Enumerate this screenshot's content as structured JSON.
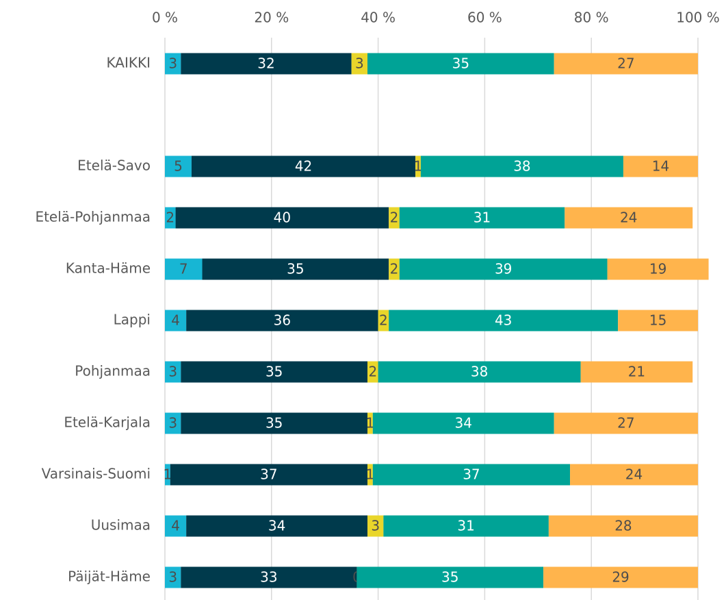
{
  "chart_data": {
    "type": "stacked_bar_horizontal",
    "categories": [
      "KAIKKI",
      null,
      "Etelä-Savo",
      "Etelä-Pohjanmaa",
      "Kanta-Häme",
      "Lappi",
      "Pohjanmaa",
      "Etelä-Karjala",
      "Varsinais-Suomi",
      "Uusimaa",
      "Päijät-Häme"
    ],
    "series": [
      {
        "color": "#17b6d4",
        "label_color": "#4d4d4d",
        "values": [
          3,
          null,
          5,
          2,
          7,
          4,
          3,
          3,
          1,
          4,
          3
        ]
      },
      {
        "color": "#003a4c",
        "label_color": "#ffffff",
        "values": [
          32,
          null,
          42,
          40,
          35,
          36,
          35,
          35,
          37,
          34,
          33
        ]
      },
      {
        "color": "#e9d62b",
        "label_color": "#4d4d4d",
        "values": [
          3,
          null,
          1,
          2,
          2,
          2,
          2,
          1,
          1,
          3,
          0
        ]
      },
      {
        "color": "#00a396",
        "label_color": "#ffffff",
        "values": [
          35,
          null,
          38,
          31,
          39,
          43,
          38,
          34,
          37,
          31,
          35
        ]
      },
      {
        "color": "#ffb44c",
        "label_color": "#4d4d4d",
        "values": [
          27,
          null,
          14,
          24,
          19,
          15,
          21,
          27,
          24,
          28,
          29
        ]
      }
    ],
    "xlim": [
      0,
      100
    ],
    "xticks": [
      {
        "value": 0,
        "label": "0 %"
      },
      {
        "value": 20,
        "label": "20 %"
      },
      {
        "value": 40,
        "label": "40 %"
      },
      {
        "value": 60,
        "label": "60 %"
      },
      {
        "value": 80,
        "label": "80 %"
      },
      {
        "value": 100,
        "label": "100 %"
      }
    ],
    "grid": true
  }
}
